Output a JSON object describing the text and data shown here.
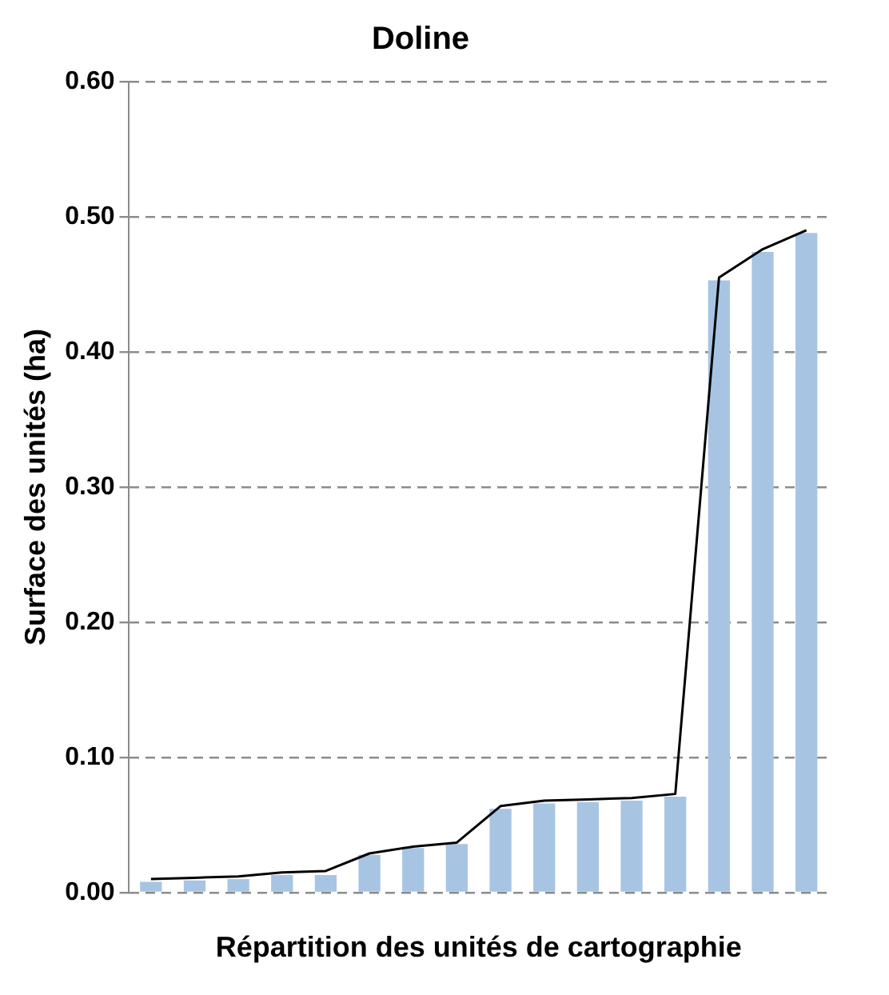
{
  "chart_data": {
    "type": "bar",
    "title": "Doline",
    "xlabel": "Répartition des unités de cartographie",
    "ylabel": "Surface des unités (ha)",
    "categories": [
      null,
      null,
      null,
      null,
      null,
      null,
      null,
      null,
      null,
      null,
      null,
      null,
      null,
      null,
      null,
      null
    ],
    "series": [
      {
        "color": "#a7c5e3",
        "values": [
          0.008,
          0.009,
          0.01,
          0.013,
          0.013,
          0.028,
          0.033,
          0.036,
          0.062,
          0.066,
          0.067,
          0.068,
          0.071,
          0.453,
          0.474,
          0.488
        ]
      },
      {
        "type": "line",
        "color": "#000000",
        "values": [
          0.01,
          0.011,
          0.012,
          0.015,
          0.016,
          0.029,
          0.034,
          0.037,
          0.064,
          0.068,
          0.069,
          0.07,
          0.073,
          0.455,
          0.476,
          0.49
        ]
      }
    ],
    "ylim": [
      0,
      0.6
    ],
    "yticks": [
      {
        "value": 0,
        "label": "0.00"
      },
      {
        "value": 0.1,
        "label": "0.10"
      },
      {
        "value": 0.2,
        "label": "0.20"
      },
      {
        "value": 0.3,
        "label": "0.30"
      },
      {
        "value": 0.4,
        "label": "0.40"
      },
      {
        "value": 0.5,
        "label": "0.50"
      },
      {
        "value": 0.6,
        "label": "0.60"
      }
    ],
    "grid": "y",
    "line_style": "solid",
    "marker": "none"
  }
}
